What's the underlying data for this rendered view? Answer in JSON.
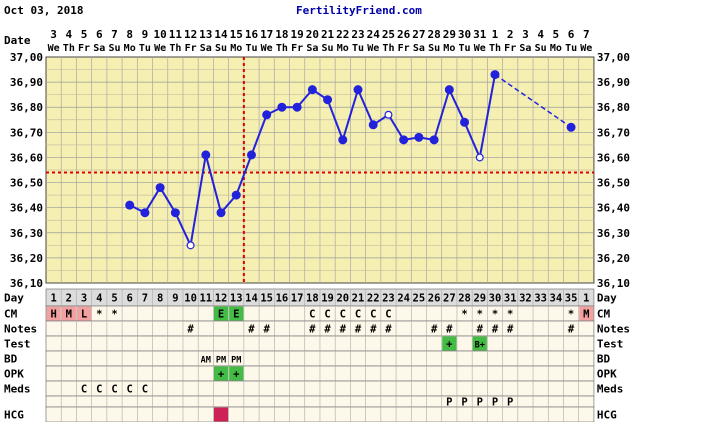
{
  "header": {
    "date": "Oct 03, 2018",
    "site": "FertilityFriend.com"
  },
  "chart_data": {
    "type": "line",
    "title": "",
    "xlabel": "",
    "ylabel": "",
    "ylim": [
      36.1,
      37.0
    ],
    "yticks": [
      "37,00",
      "36,90",
      "36,80",
      "36,70",
      "36,60",
      "36,50",
      "36,40",
      "36,30",
      "36,20",
      "36,10"
    ],
    "row_labels": {
      "date": "Date",
      "day": "Day",
      "cm": "CM",
      "notes": "Notes",
      "test": "Test",
      "bd": "BD",
      "opk": "OPK",
      "meds": "Meds",
      "hcg": "HCG"
    },
    "dates": [
      "3",
      "4",
      "5",
      "6",
      "7",
      "8",
      "9",
      "10",
      "11",
      "12",
      "13",
      "14",
      "15",
      "16",
      "17",
      "18",
      "19",
      "20",
      "21",
      "22",
      "23",
      "24",
      "25",
      "26",
      "27",
      "28",
      "29",
      "30",
      "31",
      "1",
      "2",
      "3",
      "4",
      "5",
      "6",
      "7"
    ],
    "weekdays": [
      "We",
      "Th",
      "Fr",
      "Sa",
      "Su",
      "Mo",
      "Tu",
      "We",
      "Th",
      "Fr",
      "Sa",
      "Su",
      "Mo",
      "Tu",
      "We",
      "Th",
      "Fr",
      "Sa",
      "Su",
      "Mo",
      "Tu",
      "We",
      "Th",
      "Fr",
      "Sa",
      "Su",
      "Mo",
      "Tu",
      "We",
      "Th",
      "Fr",
      "Sa",
      "Su",
      "Mo",
      "Tu",
      "We"
    ],
    "cycle_days": [
      "1",
      "2",
      "3",
      "4",
      "5",
      "6",
      "7",
      "8",
      "9",
      "10",
      "11",
      "12",
      "13",
      "14",
      "15",
      "16",
      "17",
      "18",
      "19",
      "20",
      "21",
      "22",
      "23",
      "24",
      "25",
      "26",
      "27",
      "28",
      "29",
      "30",
      "31",
      "32",
      "33",
      "34",
      "35",
      "1"
    ],
    "temperatures": [
      null,
      null,
      null,
      null,
      null,
      36.41,
      36.38,
      36.48,
      36.38,
      36.25,
      36.61,
      36.38,
      36.45,
      36.61,
      36.77,
      36.8,
      36.8,
      36.87,
      36.83,
      36.67,
      36.87,
      36.73,
      36.77,
      36.67,
      36.68,
      36.67,
      36.87,
      36.74,
      36.6,
      36.93,
      null,
      null,
      null,
      null,
      36.72,
      null
    ],
    "open_points": [
      9,
      22,
      28
    ],
    "dashed_from": 29,
    "coverline": 36.54,
    "ovulation_day_index": 12,
    "series": [
      {
        "values": [
          null,
          null,
          null,
          null,
          null,
          36.41,
          36.38,
          36.48,
          36.38,
          36.25,
          36.61,
          36.38,
          36.45,
          36.61,
          36.77,
          36.8,
          36.8,
          36.87,
          36.83,
          36.67,
          36.87,
          36.73,
          36.77,
          36.67,
          36.68,
          36.67,
          36.87,
          36.74,
          36.6,
          36.93,
          null,
          null,
          null,
          null,
          36.72,
          null
        ]
      }
    ],
    "rows": {
      "cm": [
        "H",
        "M",
        "L",
        "*",
        "*",
        "",
        "",
        "",
        "",
        "",
        "",
        "E",
        "E",
        "",
        "",
        "",
        "",
        "C",
        "C",
        "C",
        "C",
        "C",
        "C",
        "",
        "",
        "",
        "",
        "*",
        "*",
        "*",
        "*",
        "",
        "",
        "",
        "*",
        "M"
      ],
      "notes": [
        "",
        "",
        "",
        "",
        "",
        "",
        "",
        "",
        "",
        "#",
        "",
        "",
        "",
        "#",
        "#",
        "",
        "",
        "#",
        "#",
        "#",
        "#",
        "#",
        "#",
        "",
        "",
        "#",
        "#",
        "",
        "#",
        "#",
        "#",
        "",
        "",
        "",
        "#",
        ""
      ],
      "test": [
        "",
        "",
        "",
        "",
        "",
        "",
        "",
        "",
        "",
        "",
        "",
        "",
        "",
        "",
        "",
        "",
        "",
        "",
        "",
        "",
        "",
        "",
        "",
        "",
        "",
        "",
        "+",
        "",
        "B+",
        "",
        "",
        "",
        "",
        "",
        "",
        ""
      ],
      "bd": [
        "",
        "",
        "",
        "",
        "",
        "",
        "",
        "",
        "",
        "",
        "AM",
        "PM",
        "PM",
        "",
        "",
        "",
        "",
        "",
        "",
        "",
        "",
        "",
        "",
        "",
        "",
        "",
        "",
        "",
        "",
        "",
        "",
        "",
        "",
        "",
        "",
        ""
      ],
      "opk": [
        "",
        "",
        "",
        "",
        "",
        "",
        "",
        "",
        "",
        "",
        "",
        "+",
        "+",
        "",
        "",
        "",
        "",
        "",
        "",
        "",
        "",
        "",
        "",
        "",
        "",
        "",
        "",
        "",
        "",
        "",
        "",
        "",
        "",
        "",
        "",
        ""
      ],
      "meds": [
        "",
        "",
        "C",
        "C",
        "C",
        "C",
        "C",
        "",
        "",
        "",
        "",
        "",
        "",
        "",
        "",
        "",
        "",
        "",
        "",
        "",
        "",
        "",
        "",
        "",
        "",
        "",
        "",
        "",
        "",
        "",
        "",
        "",
        "",
        "",
        "",
        ""
      ],
      "extra": [
        "",
        "",
        "",
        "",
        "",
        "",
        "",
        "",
        "",
        "",
        "",
        "",
        "",
        "",
        "",
        "",
        "",
        "",
        "",
        "",
        "",
        "",
        "",
        "",
        "",
        "",
        "P",
        "P",
        "P",
        "P",
        "P",
        "",
        "",
        "",
        "",
        ""
      ],
      "hcg": [
        "",
        "",
        "",
        "",
        "",
        "",
        "",
        "",
        "",
        "",
        "",
        "",
        "",
        "",
        "",
        "",
        "",
        "",
        "",
        "",
        "",
        "",
        "",
        "",
        "",
        "",
        "",
        "",
        "",
        "",
        "",
        "",
        "",
        "",
        "",
        ""
      ]
    },
    "highlights": {
      "cm_red": [
        0,
        1,
        2,
        35
      ],
      "cm_green": [
        11,
        12
      ],
      "test_green": [
        26,
        28
      ],
      "opk_green": [
        11,
        12
      ],
      "hcg_red": [
        11
      ]
    },
    "colors": {
      "plot_bg": "#f6efb2",
      "row_bg": "#fdf8ea",
      "day_row_bg": "#dcdcdc",
      "line": "#2222dd",
      "coverline": "#dd0000",
      "cm_red": "#f2a0a0",
      "green": "#44bb44",
      "hcg_red": "#cc2255"
    }
  }
}
